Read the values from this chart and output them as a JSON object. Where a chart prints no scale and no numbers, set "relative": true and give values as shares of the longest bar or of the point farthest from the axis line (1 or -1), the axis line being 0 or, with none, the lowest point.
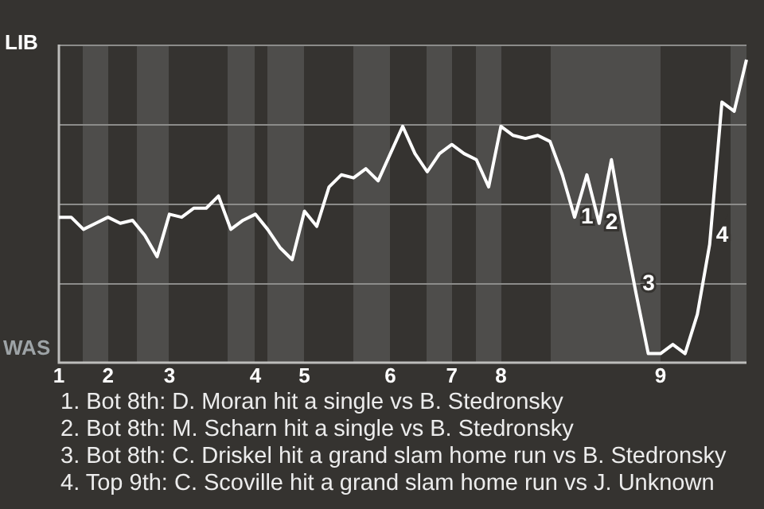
{
  "chart_data": {
    "type": "line",
    "relative": true,
    "categories": [
      "1",
      null,
      null,
      null,
      "2",
      null,
      null,
      null,
      null,
      "3",
      null,
      null,
      null,
      null,
      null,
      null,
      "4",
      null,
      null,
      null,
      "5",
      null,
      null,
      null,
      null,
      null,
      null,
      "6",
      null,
      null,
      null,
      null,
      "7",
      null,
      null,
      null,
      "8",
      null,
      null,
      null,
      null,
      null,
      null,
      null,
      null,
      null,
      null,
      null,
      null,
      "9",
      null,
      null,
      null,
      null,
      null,
      null,
      null
    ],
    "series": [
      {
        "color": "#ffffff",
        "values": [
          0.48,
          0.48,
          0.44,
          0.46,
          0.48,
          0.46,
          0.47,
          0.42,
          0.35,
          0.49,
          0.48,
          0.51,
          0.51,
          0.55,
          0.44,
          0.47,
          0.49,
          0.44,
          0.38,
          0.34,
          0.5,
          0.45,
          0.58,
          0.62,
          0.61,
          0.64,
          0.6,
          0.69,
          0.78,
          0.69,
          0.63,
          0.69,
          0.72,
          0.69,
          0.67,
          0.58,
          0.78,
          0.75,
          0.74,
          0.75,
          0.73,
          0.62,
          0.48,
          0.62,
          0.46,
          0.67,
          0.44,
          0.23,
          0.03,
          0.03,
          0.06,
          0.03,
          0.16,
          0.39,
          0.86,
          0.83,
          1
        ]
      }
    ],
    "grid": "y",
    "legend": false,
    "marker": "none",
    "line_style": "solid",
    "annotations": [
      "LIB",
      "WAS",
      "1",
      "2",
      "3",
      "4",
      "1. Bot 8th: D. Moran hit a single vs B. Stedronsky",
      "2. Bot 8th: M. Scharn hit a single vs B. Stedronsky",
      "3. Bot 8th: C. Driskel hit a grand slam home run vs B. Stedronsky",
      "4. Top 9th: C. Scoville hit a grand slam home run vs J. Unknown"
    ]
  }
}
